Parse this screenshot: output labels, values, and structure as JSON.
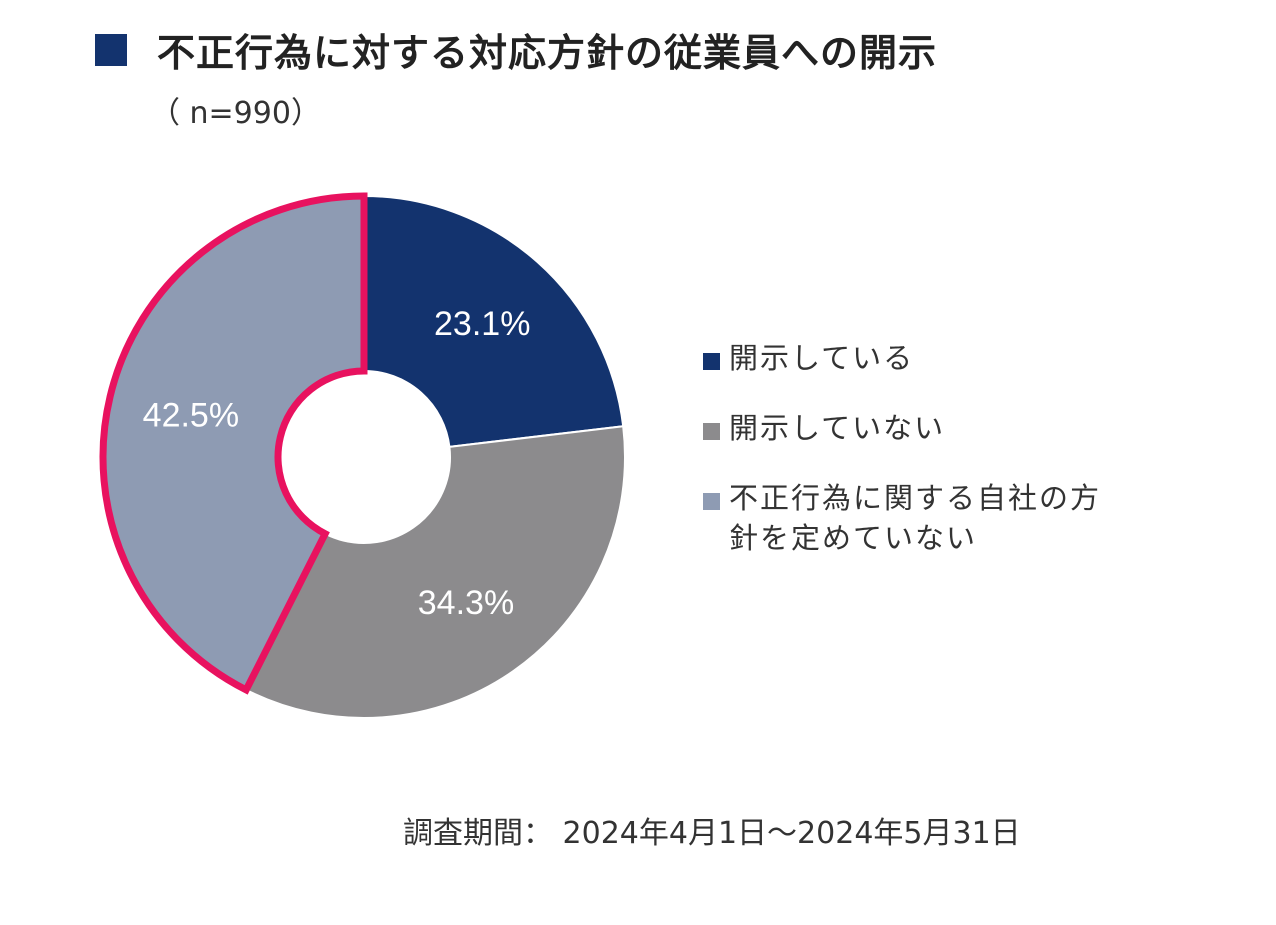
{
  "header": {
    "title": "不正行為に対する対応方針の従業員への開示",
    "subtitle": "（ n=990）"
  },
  "footer": {
    "period": "調査期間： 2024年4月1日～2024年5月31日"
  },
  "colors": {
    "title_square": "#13336e",
    "highlight_outline": "#e8125f"
  },
  "chart_data": {
    "type": "pie",
    "variant": "donut",
    "start_angle": "12 o'clock, clockwise",
    "series": [
      {
        "name": "開示している",
        "value": 23.1,
        "label": "23.1%",
        "color": "#13336e"
      },
      {
        "name": "開示していない",
        "value": 34.3,
        "label": "34.3%",
        "color": "#8c8b8d"
      },
      {
        "name": "不正行為に関する自社の方針を定めていない",
        "value": 42.5,
        "label": "42.5%",
        "color": "#8e9bb3",
        "highlighted": true
      }
    ],
    "legend_items": [
      {
        "text": "開示している",
        "color": "#13336e"
      },
      {
        "text": "開示していない",
        "color": "#8c8b8d"
      },
      {
        "text": "不正行為に関する自社の方針を定めていない",
        "color": "#8e9bb3"
      }
    ],
    "legend_position": "right"
  }
}
